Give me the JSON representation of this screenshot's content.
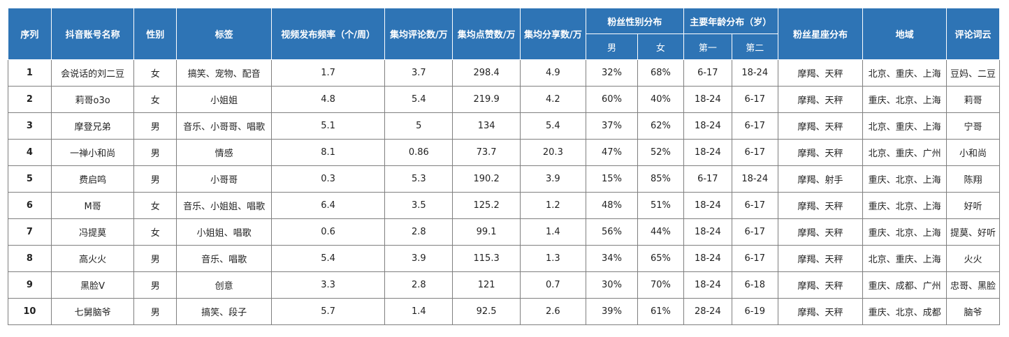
{
  "header": {
    "index": "序列",
    "account": "抖音账号名称",
    "gender": "性别",
    "tags": "标签",
    "frequency": "视频发布频率（个/周）",
    "comments": "集均评论数/万",
    "likes": "集均点赞数/万",
    "shares": "集均分享数/万",
    "fan_gender": "粉丝性别分布",
    "male": "男",
    "female": "女",
    "age": "主要年龄分布（岁）",
    "age_first": "第一",
    "age_second": "第二",
    "zodiac": "粉丝星座分布",
    "region": "地域",
    "wordcloud": "评论词云"
  },
  "rows": [
    {
      "index": "1",
      "account": "会说话的刘二豆",
      "gender": "女",
      "tags": "搞笑、宠物、配音",
      "frequency": "1.7",
      "comments": "3.7",
      "likes": "298.4",
      "shares": "4.9",
      "male": "32%",
      "female": "68%",
      "age1": "6-17",
      "age2": "18-24",
      "zodiac": "摩羯、天秤",
      "region": "北京、重庆、上海",
      "wordcloud": "豆妈、二豆"
    },
    {
      "index": "2",
      "account": "莉哥o3o",
      "gender": "女",
      "tags": "小姐姐",
      "frequency": "4.8",
      "comments": "5.4",
      "likes": "219.9",
      "shares": "4.2",
      "male": "60%",
      "female": "40%",
      "age1": "18-24",
      "age2": "6-17",
      "zodiac": "摩羯、天秤",
      "region": "重庆、北京、上海",
      "wordcloud": "莉哥"
    },
    {
      "index": "3",
      "account": "摩登兄弟",
      "gender": "男",
      "tags": "音乐、小哥哥、唱歌",
      "frequency": "5.1",
      "comments": "5",
      "likes": "134",
      "shares": "5.4",
      "male": "37%",
      "female": "62%",
      "age1": "18-24",
      "age2": "6-17",
      "zodiac": "摩羯、天秤",
      "region": "北京、重庆、上海",
      "wordcloud": "宁哥"
    },
    {
      "index": "4",
      "account": "一禅小和尚",
      "gender": "男",
      "tags": "情感",
      "frequency": "8.1",
      "comments": "0.86",
      "likes": "73.7",
      "shares": "20.3",
      "male": "47%",
      "female": "52%",
      "age1": "18-24",
      "age2": "6-17",
      "zodiac": "摩羯、天秤",
      "region": "北京、重庆、广州",
      "wordcloud": "小和尚"
    },
    {
      "index": "5",
      "account": "费启鸣",
      "gender": "男",
      "tags": "小哥哥",
      "frequency": "0.3",
      "comments": "5.3",
      "likes": "190.2",
      "shares": "3.9",
      "male": "15%",
      "female": "85%",
      "age1": "6-17",
      "age2": "18-24",
      "zodiac": "摩羯、射手",
      "region": "重庆、北京、上海",
      "wordcloud": "陈翔"
    },
    {
      "index": "6",
      "account": "M哥",
      "gender": "女",
      "tags": "音乐、小姐姐、唱歌",
      "frequency": "6.4",
      "comments": "3.5",
      "likes": "125.2",
      "shares": "1.2",
      "male": "48%",
      "female": "51%",
      "age1": "18-24",
      "age2": "6-17",
      "zodiac": "摩羯、天秤",
      "region": "重庆、北京、上海",
      "wordcloud": "好听"
    },
    {
      "index": "7",
      "account": "冯提莫",
      "gender": "女",
      "tags": "小姐姐、唱歌",
      "frequency": "0.6",
      "comments": "2.8",
      "likes": "99.1",
      "shares": "1.4",
      "male": "56%",
      "female": "44%",
      "age1": "18-24",
      "age2": "6-17",
      "zodiac": "摩羯、天秤",
      "region": "重庆、北京、上海",
      "wordcloud": "提莫、好听"
    },
    {
      "index": "8",
      "account": "高火火",
      "gender": "男",
      "tags": "音乐、唱歌",
      "frequency": "5.4",
      "comments": "3.9",
      "likes": "115.3",
      "shares": "1.3",
      "male": "34%",
      "female": "65%",
      "age1": "18-24",
      "age2": "6-17",
      "zodiac": "摩羯、天秤",
      "region": "北京、重庆、上海",
      "wordcloud": "火火"
    },
    {
      "index": "9",
      "account": "黑脸V",
      "gender": "男",
      "tags": "创意",
      "frequency": "3.3",
      "comments": "2.8",
      "likes": "121",
      "shares": "0.7",
      "male": "30%",
      "female": "70%",
      "age1": "18-24",
      "age2": "6-18",
      "zodiac": "摩羯、天秤",
      "region": "重庆、成都、广州",
      "wordcloud": "忠哥、黑脸"
    },
    {
      "index": "10",
      "account": "七舅脑爷",
      "gender": "男",
      "tags": "搞笑、段子",
      "frequency": "5.7",
      "comments": "1.4",
      "likes": "92.5",
      "shares": "2.6",
      "male": "39%",
      "female": "61%",
      "age1": "28-24",
      "age2": "6-19",
      "zodiac": "摩羯、天秤",
      "region": "重庆、北京、成都",
      "wordcloud": "脑爷"
    }
  ],
  "colors": {
    "header_bg": "#2e74b5",
    "header_text": "#ffffff",
    "border": "#7f7f7f"
  }
}
